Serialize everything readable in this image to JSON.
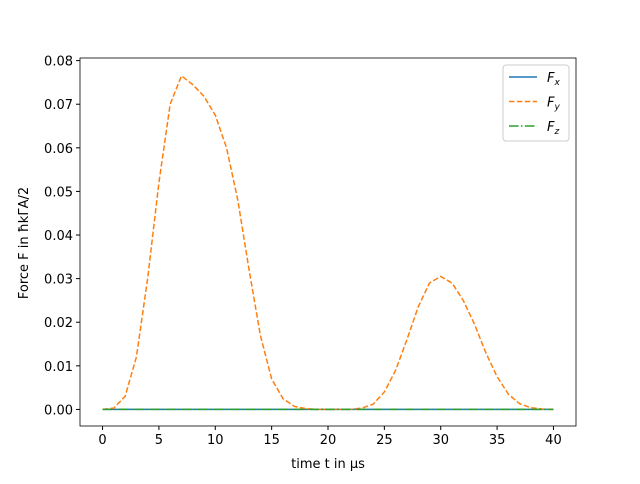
{
  "chart_data": {
    "type": "line",
    "xlabel": "time t in μs",
    "ylabel": "Force F in ħkΓA/2",
    "x": [
      0,
      1,
      2,
      3,
      4,
      5,
      6,
      7,
      8,
      9,
      10,
      11,
      12,
      13,
      14,
      15,
      16,
      17,
      18,
      19,
      20,
      21,
      22,
      23,
      24,
      25,
      26,
      27,
      28,
      29,
      30,
      31,
      32,
      33,
      34,
      35,
      36,
      37,
      38,
      39,
      40
    ],
    "series": [
      {
        "name": "Fx",
        "color": "#1f77b4",
        "dash": "solid",
        "values": [
          0,
          0,
          0,
          0,
          0,
          0,
          0,
          0,
          0,
          0,
          0,
          0,
          0,
          0,
          0,
          0,
          0,
          0,
          0,
          0,
          0,
          0,
          0,
          0,
          0,
          0,
          0,
          0,
          0,
          0,
          0,
          0,
          0,
          0,
          0,
          0,
          0,
          0,
          0,
          0,
          0
        ]
      },
      {
        "name": "Fy",
        "color": "#ff7f0e",
        "dash": "dashed",
        "values": [
          0,
          0.0003,
          0.003,
          0.012,
          0.03,
          0.052,
          0.07,
          0.0765,
          0.0745,
          0.0718,
          0.0675,
          0.06,
          0.048,
          0.032,
          0.017,
          0.007,
          0.0025,
          0.0007,
          0.0002,
          0,
          0,
          0,
          0,
          0.0003,
          0.0012,
          0.004,
          0.009,
          0.016,
          0.0235,
          0.029,
          0.0305,
          0.029,
          0.025,
          0.0195,
          0.013,
          0.0075,
          0.0035,
          0.0013,
          0.0004,
          0.0001,
          0
        ]
      },
      {
        "name": "Fz",
        "color": "#2ca02c",
        "dash": "dashdot",
        "values": [
          0,
          0,
          0,
          0,
          0,
          0,
          0,
          0,
          0,
          0,
          0,
          0,
          0,
          0,
          0,
          0,
          0,
          0,
          0,
          0,
          0,
          0,
          0,
          0,
          0,
          0,
          0,
          0,
          0,
          0,
          0,
          0,
          0,
          0,
          0,
          0,
          0,
          0,
          0,
          0,
          0
        ]
      }
    ],
    "xlim": [
      -2,
      42
    ],
    "xticks": [
      0,
      5,
      10,
      15,
      20,
      25,
      30,
      35,
      40
    ],
    "ylim": [
      -0.0038,
      0.0806
    ],
    "yticks": [
      {
        "value": 0,
        "label": "0.00"
      },
      {
        "value": 0.01,
        "label": "0.01"
      },
      {
        "value": 0.02,
        "label": "0.02"
      },
      {
        "value": 0.03,
        "label": "0.03"
      },
      {
        "value": 0.04,
        "label": "0.04"
      },
      {
        "value": 0.05,
        "label": "0.05"
      },
      {
        "value": 0.06,
        "label": "0.06"
      },
      {
        "value": 0.07,
        "label": "0.07"
      },
      {
        "value": 0.08,
        "label": "0.08"
      }
    ],
    "legend": "upper right"
  }
}
